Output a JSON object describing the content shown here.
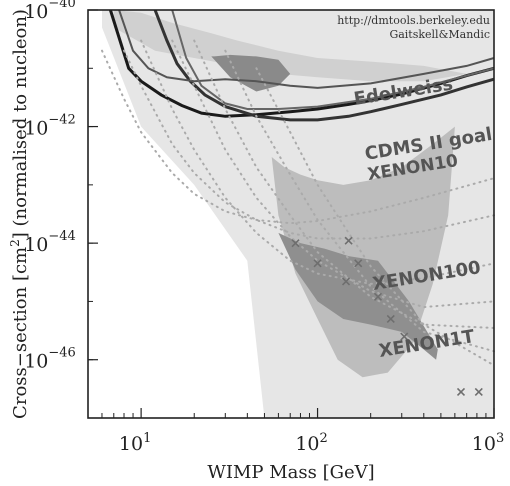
{
  "chart_data": {
    "type": "line",
    "title": "",
    "xlabel": "WIMP Mass [GeV]",
    "ylabel_prefix": "Cross−section [cm",
    "ylabel_sup": "2",
    "ylabel_suffix": "] (normalised to nucleon)",
    "x_scale": "log",
    "y_scale": "log",
    "xlim": [
      5,
      1000
    ],
    "ylim": [
      1e-47,
      1e-40
    ],
    "x_ticks": [
      {
        "value": 10,
        "base": "10",
        "exp": "1"
      },
      {
        "value": 100,
        "base": "10",
        "exp": "2"
      },
      {
        "value": 1000,
        "base": "10",
        "exp": "3"
      }
    ],
    "y_ticks": [
      {
        "value": 1e-40,
        "base": "10",
        "exp": "−40"
      },
      {
        "value": 1e-42,
        "base": "10",
        "exp": "−42"
      },
      {
        "value": 1e-44,
        "base": "10",
        "exp": "−44"
      },
      {
        "value": 1e-46,
        "base": "10",
        "exp": "−46"
      }
    ],
    "credit_lines": [
      "http://dmtools.berkeley.edu",
      "Gaitskell&Mandic"
    ],
    "labels": [
      {
        "text": "Edelweiss",
        "x": 310,
        "y": 3.2e-42
      },
      {
        "text": "CDMS II goal",
        "x": 430,
        "y": 4e-43
      },
      {
        "text": "XENON10",
        "x": 350,
        "y": 1.6e-43
      },
      {
        "text": "XENON100",
        "x": 420,
        "y": 2.2e-45
      },
      {
        "text": "XENON1T",
        "x": 420,
        "y": 1.5e-46
      }
    ],
    "series": [
      {
        "style": "solid-thick",
        "color": "#1a1a1a",
        "x": [
          6.7,
          8.5,
          10,
          13,
          17,
          22,
          30,
          45,
          70,
          100,
          150,
          200,
          300,
          500,
          700,
          1000
        ],
        "y": [
          1e-40,
          1e-41,
          6e-42,
          3.5e-42,
          2.3e-42,
          1.7e-42,
          1.5e-42,
          1.6e-42,
          1.8e-42,
          2e-42,
          2.4e-42,
          2.8e-42,
          3.6e-42,
          5.5e-42,
          7.5e-42,
          1e-41
        ]
      },
      {
        "style": "solid-thick",
        "color": "#333333",
        "x": [
          12,
          14,
          16,
          19,
          23,
          30,
          45,
          70,
          100,
          150,
          200,
          300,
          500,
          700,
          1000
        ],
        "y": [
          1e-40,
          3e-41,
          1.2e-41,
          6e-42,
          3.5e-42,
          2.2e-42,
          1.5e-42,
          1.3e-42,
          1.3e-42,
          1.5e-42,
          1.8e-42,
          2.4e-42,
          3.5e-42,
          4.8e-42,
          6.5e-42
        ]
      },
      {
        "style": "solid",
        "color": "#555555",
        "x": [
          7.5,
          9,
          11,
          14,
          20,
          30,
          45,
          70,
          100,
          200,
          400,
          700,
          1000
        ],
        "y": [
          1e-40,
          2e-41,
          1e-41,
          7e-42,
          6e-42,
          6.5e-42,
          6e-42,
          5e-42,
          4.6e-42,
          5.5e-42,
          8e-42,
          1.1e-41,
          1.5e-41
        ]
      },
      {
        "style": "solid",
        "color": "#666666",
        "x": [
          15,
          18,
          22,
          30,
          40,
          60,
          100,
          200,
          400,
          1000
        ],
        "y": [
          1e-40,
          1.5e-41,
          5e-42,
          2.5e-42,
          2e-42,
          2e-42,
          2.2e-42,
          3e-42,
          4.8e-42,
          1e-41
        ]
      },
      {
        "style": "dotted",
        "color": "#aaaaaa",
        "x": [
          6,
          8,
          10,
          15,
          20,
          30,
          45,
          70,
          100,
          200,
          400,
          1000
        ],
        "y": [
          2e-41,
          3e-42,
          8e-43,
          1.6e-43,
          7e-44,
          3.5e-44,
          2.5e-44,
          2.2e-44,
          2.4e-44,
          3.5e-44,
          6e-44,
          1.3e-43
        ]
      },
      {
        "style": "dotted",
        "color": "#aaaaaa",
        "x": [
          8,
          10,
          15,
          20,
          30,
          45,
          70,
          100,
          200,
          400,
          1000
        ],
        "y": [
          2e-41,
          5e-42,
          5e-43,
          1.6e-43,
          5e-44,
          2.5e-44,
          1.5e-44,
          1.2e-44,
          1.2e-44,
          1.6e-44,
          3e-44
        ]
      },
      {
        "style": "dotted",
        "color": "#aaaaaa",
        "x": [
          10,
          15,
          20,
          30,
          45,
          70,
          100,
          200,
          400,
          1000
        ],
        "y": [
          3e-41,
          2e-42,
          4e-43,
          6e-44,
          1.5e-44,
          5e-45,
          3e-45,
          2e-45,
          2.5e-45,
          4.5e-45
        ]
      },
      {
        "style": "dotted",
        "color": "#aaaaaa",
        "x": [
          15,
          20,
          30,
          45,
          70,
          100,
          200,
          400,
          1000
        ],
        "y": [
          3e-41,
          5e-42,
          4e-43,
          6e-44,
          1.3e-44,
          5e-45,
          1.5e-45,
          8e-46,
          1e-45
        ]
      },
      {
        "style": "dotted",
        "color": "#aaaaaa",
        "x": [
          20,
          30,
          45,
          70,
          100,
          200,
          400,
          1000
        ],
        "y": [
          3e-41,
          2e-42,
          2e-43,
          3e-44,
          7e-45,
          1.2e-45,
          4e-46,
          3.5e-46
        ]
      },
      {
        "style": "dotted",
        "color": "#aaaaaa",
        "x": [
          30,
          45,
          70,
          100,
          200,
          400,
          1000
        ],
        "y": [
          2e-41,
          1.5e-42,
          1.5e-43,
          2.5e-44,
          1.8e-45,
          3e-46,
          1.4e-46
        ]
      },
      {
        "style": "dotted",
        "color": "#aaaaaa",
        "x": [
          45,
          70,
          100,
          150,
          200,
          400,
          1000
        ],
        "y": [
          1e-41,
          8e-43,
          1e-43,
          1.5e-44,
          4e-45,
          4e-46,
          8e-47
        ]
      }
    ],
    "regions": [
      {
        "fill": "#e6e6e6",
        "x": [
          6,
          10,
          20,
          40,
          50,
          1000,
          1000,
          50,
          40,
          20,
          10,
          6
        ],
        "y": [
          1e-40,
          1e-40,
          1e-40,
          1e-40,
          1e-40,
          1e-40,
          1e-47,
          1e-47,
          5e-45,
          1e-43,
          1e-42,
          5e-41
        ]
      },
      {
        "fill": "#d0d0d0",
        "x": [
          7,
          12,
          20,
          30,
          40,
          60,
          100,
          200,
          400,
          700,
          400,
          200,
          100,
          60,
          35,
          25,
          15,
          10,
          7
        ],
        "y": [
          5e-41,
          2e-41,
          1.5e-41,
          1.2e-41,
          1e-41,
          8e-42,
          7e-42,
          6e-42,
          6e-42,
          8e-42,
          1.1e-41,
          1.3e-41,
          1.5e-41,
          2e-41,
          3e-41,
          4e-41,
          6e-41,
          9e-41,
          1e-40
        ]
      },
      {
        "fill": "#8a8a8a",
        "x": [
          25,
          32,
          45,
          60,
          70,
          60,
          45,
          32,
          26
        ],
        "y": [
          1.6e-41,
          7e-42,
          4e-42,
          5e-42,
          8e-42,
          1.4e-41,
          1.6e-41,
          1.7e-41,
          1.6e-41
        ]
      },
      {
        "fill": "#bdbdbd",
        "x": [
          55,
          65,
          80,
          100,
          140,
          200,
          300,
          450,
          600,
          550,
          450,
          350,
          250,
          180,
          130,
          100,
          75,
          60
        ],
        "y": [
          3e-43,
          2e-43,
          1.5e-43,
          1.2e-43,
          1e-43,
          1.2e-43,
          2e-43,
          5e-43,
          1e-42,
          3e-44,
          2e-45,
          2e-46,
          6e-47,
          5e-47,
          1e-46,
          5e-46,
          3e-45,
          3e-44
        ]
      },
      {
        "fill": "#8f8f8f",
        "x": [
          60,
          80,
          110,
          150,
          220,
          330,
          480,
          470,
          400,
          300,
          200,
          140,
          100,
          75
        ],
        "y": [
          1.5e-44,
          1e-44,
          8e-45,
          6e-45,
          5e-45,
          1e-45,
          1.5e-46,
          1e-46,
          1.5e-46,
          3e-46,
          4e-46,
          5e-46,
          1e-45,
          3.5e-45
        ]
      }
    ],
    "markers": [
      {
        "x": 75,
        "y": 1e-44
      },
      {
        "x": 100,
        "y": 4.5e-45
      },
      {
        "x": 150,
        "y": 1.1e-44
      },
      {
        "x": 170,
        "y": 4.5e-45
      },
      {
        "x": 145,
        "y": 2.2e-45
      },
      {
        "x": 220,
        "y": 1.2e-45
      },
      {
        "x": 260,
        "y": 5e-46
      },
      {
        "x": 310,
        "y": 2.5e-46
      },
      {
        "x": 650,
        "y": 2.8e-47
      },
      {
        "x": 820,
        "y": 2.8e-47
      }
    ]
  }
}
